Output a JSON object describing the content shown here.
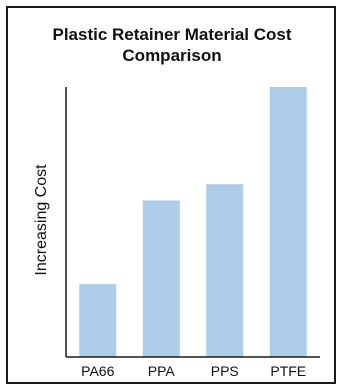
{
  "chart_data": {
    "type": "bar",
    "title_line1": "Plastic Retainer Material Cost",
    "title_line2": "Comparison",
    "xlabel": "",
    "ylabel": "Increasing Cost",
    "categories": [
      "PA66",
      "PPA",
      "PPS",
      "PTFE"
    ],
    "values": [
      27,
      58,
      64,
      100
    ],
    "ylim": [
      0,
      100
    ],
    "grid": false,
    "bar_color": "#aecbe9"
  }
}
